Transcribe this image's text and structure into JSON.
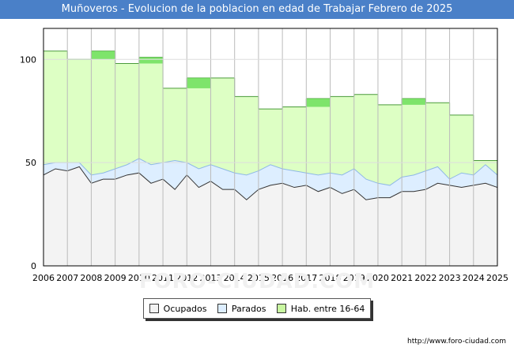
{
  "header": {
    "title": "Muñoveros - Evolucion de la poblacion en edad de Trabajar Febrero de 2025"
  },
  "footer": {
    "url": "http://www.foro-ciudad.com"
  },
  "watermark": {
    "text": "FORO-CIUDAD.COM"
  },
  "chart_data": {
    "type": "area",
    "title": "Muñoveros - Evolucion de la poblacion en edad de Trabajar Febrero de 2025",
    "xlabel": "",
    "ylabel": "",
    "xlim": [
      2006,
      2025
    ],
    "ylim": [
      0,
      115
    ],
    "yticks": [
      0,
      50,
      100
    ],
    "xticks": [
      2006,
      2007,
      2008,
      2009,
      2010,
      2011,
      2012,
      2013,
      2014,
      2015,
      2016,
      2017,
      2018,
      2019,
      2020,
      2021,
      2022,
      2023,
      2024,
      2025
    ],
    "grid": true,
    "legend_position": "bottom-center",
    "colors": {
      "ocupados_fill": "#f3f3f3",
      "ocupados_line": "#333333",
      "parados_fill": "#ddeeff",
      "parados_line": "#8fb8e6",
      "hab_fill": "#ddffc4",
      "hab_line": "#4a9a3a",
      "hab_highlight": "#66dd55"
    },
    "hab_16_64": [
      {
        "year": 2006,
        "value": 104
      },
      {
        "year": 2007,
        "value": 100
      },
      {
        "year": 2008,
        "value": 104
      },
      {
        "year": 2009,
        "value": 98
      },
      {
        "year": 2010,
        "value": 101
      },
      {
        "year": 2011,
        "value": 86
      },
      {
        "year": 2012,
        "value": 91
      },
      {
        "year": 2013,
        "value": 91
      },
      {
        "year": 2014,
        "value": 82
      },
      {
        "year": 2015,
        "value": 76
      },
      {
        "year": 2016,
        "value": 77
      },
      {
        "year": 2017,
        "value": 81
      },
      {
        "year": 2018,
        "value": 82
      },
      {
        "year": 2019,
        "value": 83
      },
      {
        "year": 2020,
        "value": 78
      },
      {
        "year": 2021,
        "value": 81
      },
      {
        "year": 2022,
        "value": 79
      },
      {
        "year": 2023,
        "value": 73
      },
      {
        "year": 2024,
        "value": 51
      }
    ],
    "series": [
      {
        "name": "Ocupados",
        "x": [
          2006.0,
          2006.5,
          2007.0,
          2007.5,
          2008.0,
          2008.5,
          2009.0,
          2009.5,
          2010.0,
          2010.5,
          2011.0,
          2011.5,
          2012.0,
          2012.5,
          2013.0,
          2013.5,
          2014.0,
          2014.5,
          2015.0,
          2015.5,
          2016.0,
          2016.5,
          2017.0,
          2017.5,
          2018.0,
          2018.5,
          2019.0,
          2019.5,
          2020.0,
          2020.5,
          2021.0,
          2021.5,
          2022.0,
          2022.5,
          2023.0,
          2023.5,
          2024.0,
          2024.5,
          2025.0
        ],
        "values": [
          44,
          47,
          46,
          48,
          40,
          42,
          42,
          44,
          45,
          40,
          42,
          37,
          44,
          38,
          41,
          37,
          37,
          32,
          37,
          39,
          40,
          38,
          39,
          36,
          38,
          35,
          37,
          32,
          33,
          33,
          36,
          36,
          37,
          40,
          39,
          38,
          39,
          40,
          38
        ]
      },
      {
        "name": "Parados",
        "x": [
          2006.0,
          2006.5,
          2007.0,
          2007.5,
          2008.0,
          2008.5,
          2009.0,
          2009.5,
          2010.0,
          2010.5,
          2011.0,
          2011.5,
          2012.0,
          2012.5,
          2013.0,
          2013.5,
          2014.0,
          2014.5,
          2015.0,
          2015.5,
          2016.0,
          2016.5,
          2017.0,
          2017.5,
          2018.0,
          2018.5,
          2019.0,
          2019.5,
          2020.0,
          2020.5,
          2021.0,
          2021.5,
          2022.0,
          2022.5,
          2023.0,
          2023.5,
          2024.0,
          2024.5,
          2025.0
        ],
        "values": [
          5,
          3,
          4,
          2,
          4,
          3,
          5,
          5,
          7,
          9,
          8,
          14,
          6,
          9,
          8,
          10,
          8,
          12,
          9,
          10,
          7,
          8,
          6,
          8,
          7,
          9,
          10,
          10,
          7,
          6,
          7,
          8,
          9,
          8,
          3,
          7,
          5,
          9,
          6
        ]
      }
    ],
    "legend": [
      "Ocupados",
      "Parados",
      "Hab. entre 16-64"
    ]
  }
}
